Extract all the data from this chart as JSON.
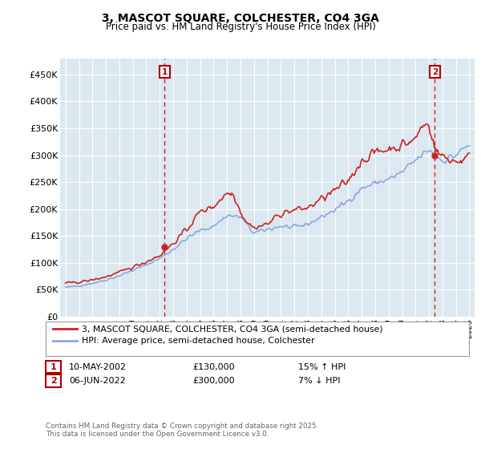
{
  "title": "3, MASCOT SQUARE, COLCHESTER, CO4 3GA",
  "subtitle": "Price paid vs. HM Land Registry's House Price Index (HPI)",
  "legend_line1": "3, MASCOT SQUARE, COLCHESTER, CO4 3GA (semi-detached house)",
  "legend_line2": "HPI: Average price, semi-detached house, Colchester",
  "annotation1_label": "1",
  "annotation1_date": "10-MAY-2002",
  "annotation1_price": "£130,000",
  "annotation1_hpi": "15% ↑ HPI",
  "annotation2_label": "2",
  "annotation2_date": "06-JUN-2022",
  "annotation2_price": "£300,000",
  "annotation2_hpi": "7% ↓ HPI",
  "footer": "Contains HM Land Registry data © Crown copyright and database right 2025.\nThis data is licensed under the Open Government Licence v3.0.",
  "property_color": "#cc2222",
  "hpi_color": "#88aadd",
  "plot_bg": "#dce8f0",
  "ylim": [
    0,
    480000
  ],
  "yticks": [
    0,
    50000,
    100000,
    150000,
    200000,
    250000,
    300000,
    350000,
    400000,
    450000
  ],
  "ytick_labels": [
    "£0",
    "£50K",
    "£100K",
    "£150K",
    "£200K",
    "£250K",
    "£300K",
    "£350K",
    "£400K",
    "£450K"
  ],
  "sale1_year": 2002.37,
  "sale1_price": 130000,
  "sale2_year": 2022.43,
  "sale2_price": 300000,
  "vline1_year": 2002.37,
  "vline2_year": 2022.43
}
